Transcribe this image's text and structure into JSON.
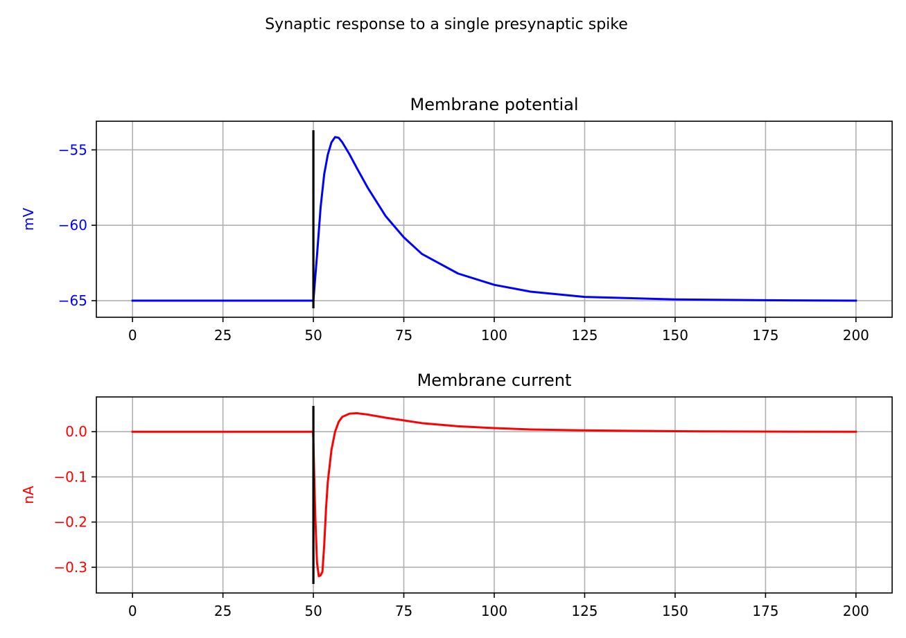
{
  "figure": {
    "suptitle": "Synaptic response to a single presynaptic spike"
  },
  "chart_data": [
    {
      "type": "line",
      "title": "Membrane potential",
      "xlabel": "",
      "ylabel": "mV",
      "axis_color": "#0000ff",
      "xlim": [
        -10,
        210
      ],
      "ylim": [
        -66.1,
        -53.1
      ],
      "xticks": [
        0,
        25,
        50,
        75,
        100,
        125,
        150,
        175,
        200
      ],
      "xtick_labels": [
        "0",
        "25",
        "50",
        "75",
        "100",
        "125",
        "150",
        "175",
        "200"
      ],
      "yticks": [
        -55,
        -60,
        -65
      ],
      "ytick_labels": [
        "−55",
        "−60",
        "−65"
      ],
      "grid": true,
      "series": [
        {
          "color": "#0000ff",
          "x": [
            0,
            50,
            51,
            52,
            53,
            54,
            55,
            56,
            57,
            58,
            60,
            62,
            65,
            70,
            75,
            80,
            90,
            100,
            110,
            125,
            150,
            175,
            200
          ],
          "y": [
            -65,
            -65,
            -62.0,
            -58.8,
            -56.6,
            -55.3,
            -54.5,
            -54.15,
            -54.2,
            -54.5,
            -55.3,
            -56.2,
            -57.5,
            -59.4,
            -60.8,
            -61.9,
            -63.2,
            -63.95,
            -64.4,
            -64.75,
            -64.92,
            -64.97,
            -65.0
          ]
        }
      ],
      "vlines": [
        {
          "color": "#000000",
          "x": 50,
          "ymin": -65.5,
          "ymax": -53.7
        }
      ]
    },
    {
      "type": "line",
      "title": "Membrane current",
      "xlabel": "",
      "ylabel": "nA",
      "axis_color": "#ff0000",
      "xlim": [
        -10,
        210
      ],
      "ylim": [
        -0.357,
        0.077
      ],
      "xticks": [
        0,
        25,
        50,
        75,
        100,
        125,
        150,
        175,
        200
      ],
      "xtick_labels": [
        "0",
        "25",
        "50",
        "75",
        "100",
        "125",
        "150",
        "175",
        "200"
      ],
      "yticks": [
        0.0,
        -0.1,
        -0.2,
        -0.3
      ],
      "ytick_labels": [
        "0.0",
        "−0.1",
        "−0.2",
        "−0.3"
      ],
      "grid": true,
      "series": [
        {
          "color": "#ff0000",
          "x": [
            0,
            49.9,
            50,
            50.5,
            51,
            51.5,
            52,
            52.5,
            53,
            53.5,
            54,
            55,
            56,
            57,
            58,
            60,
            62,
            65,
            70,
            75,
            80,
            90,
            100,
            110,
            125,
            150,
            175,
            200
          ],
          "y": [
            0,
            0,
            -0.02,
            -0.18,
            -0.29,
            -0.32,
            -0.318,
            -0.31,
            -0.25,
            -0.17,
            -0.11,
            -0.04,
            0.0,
            0.022,
            0.033,
            0.04,
            0.041,
            0.038,
            0.031,
            0.025,
            0.019,
            0.012,
            0.008,
            0.005,
            0.003,
            0.001,
            0.0003,
            0.0
          ]
        }
      ],
      "vlines": [
        {
          "color": "#000000",
          "x": 50,
          "ymin": -0.337,
          "ymax": 0.057
        }
      ]
    }
  ]
}
